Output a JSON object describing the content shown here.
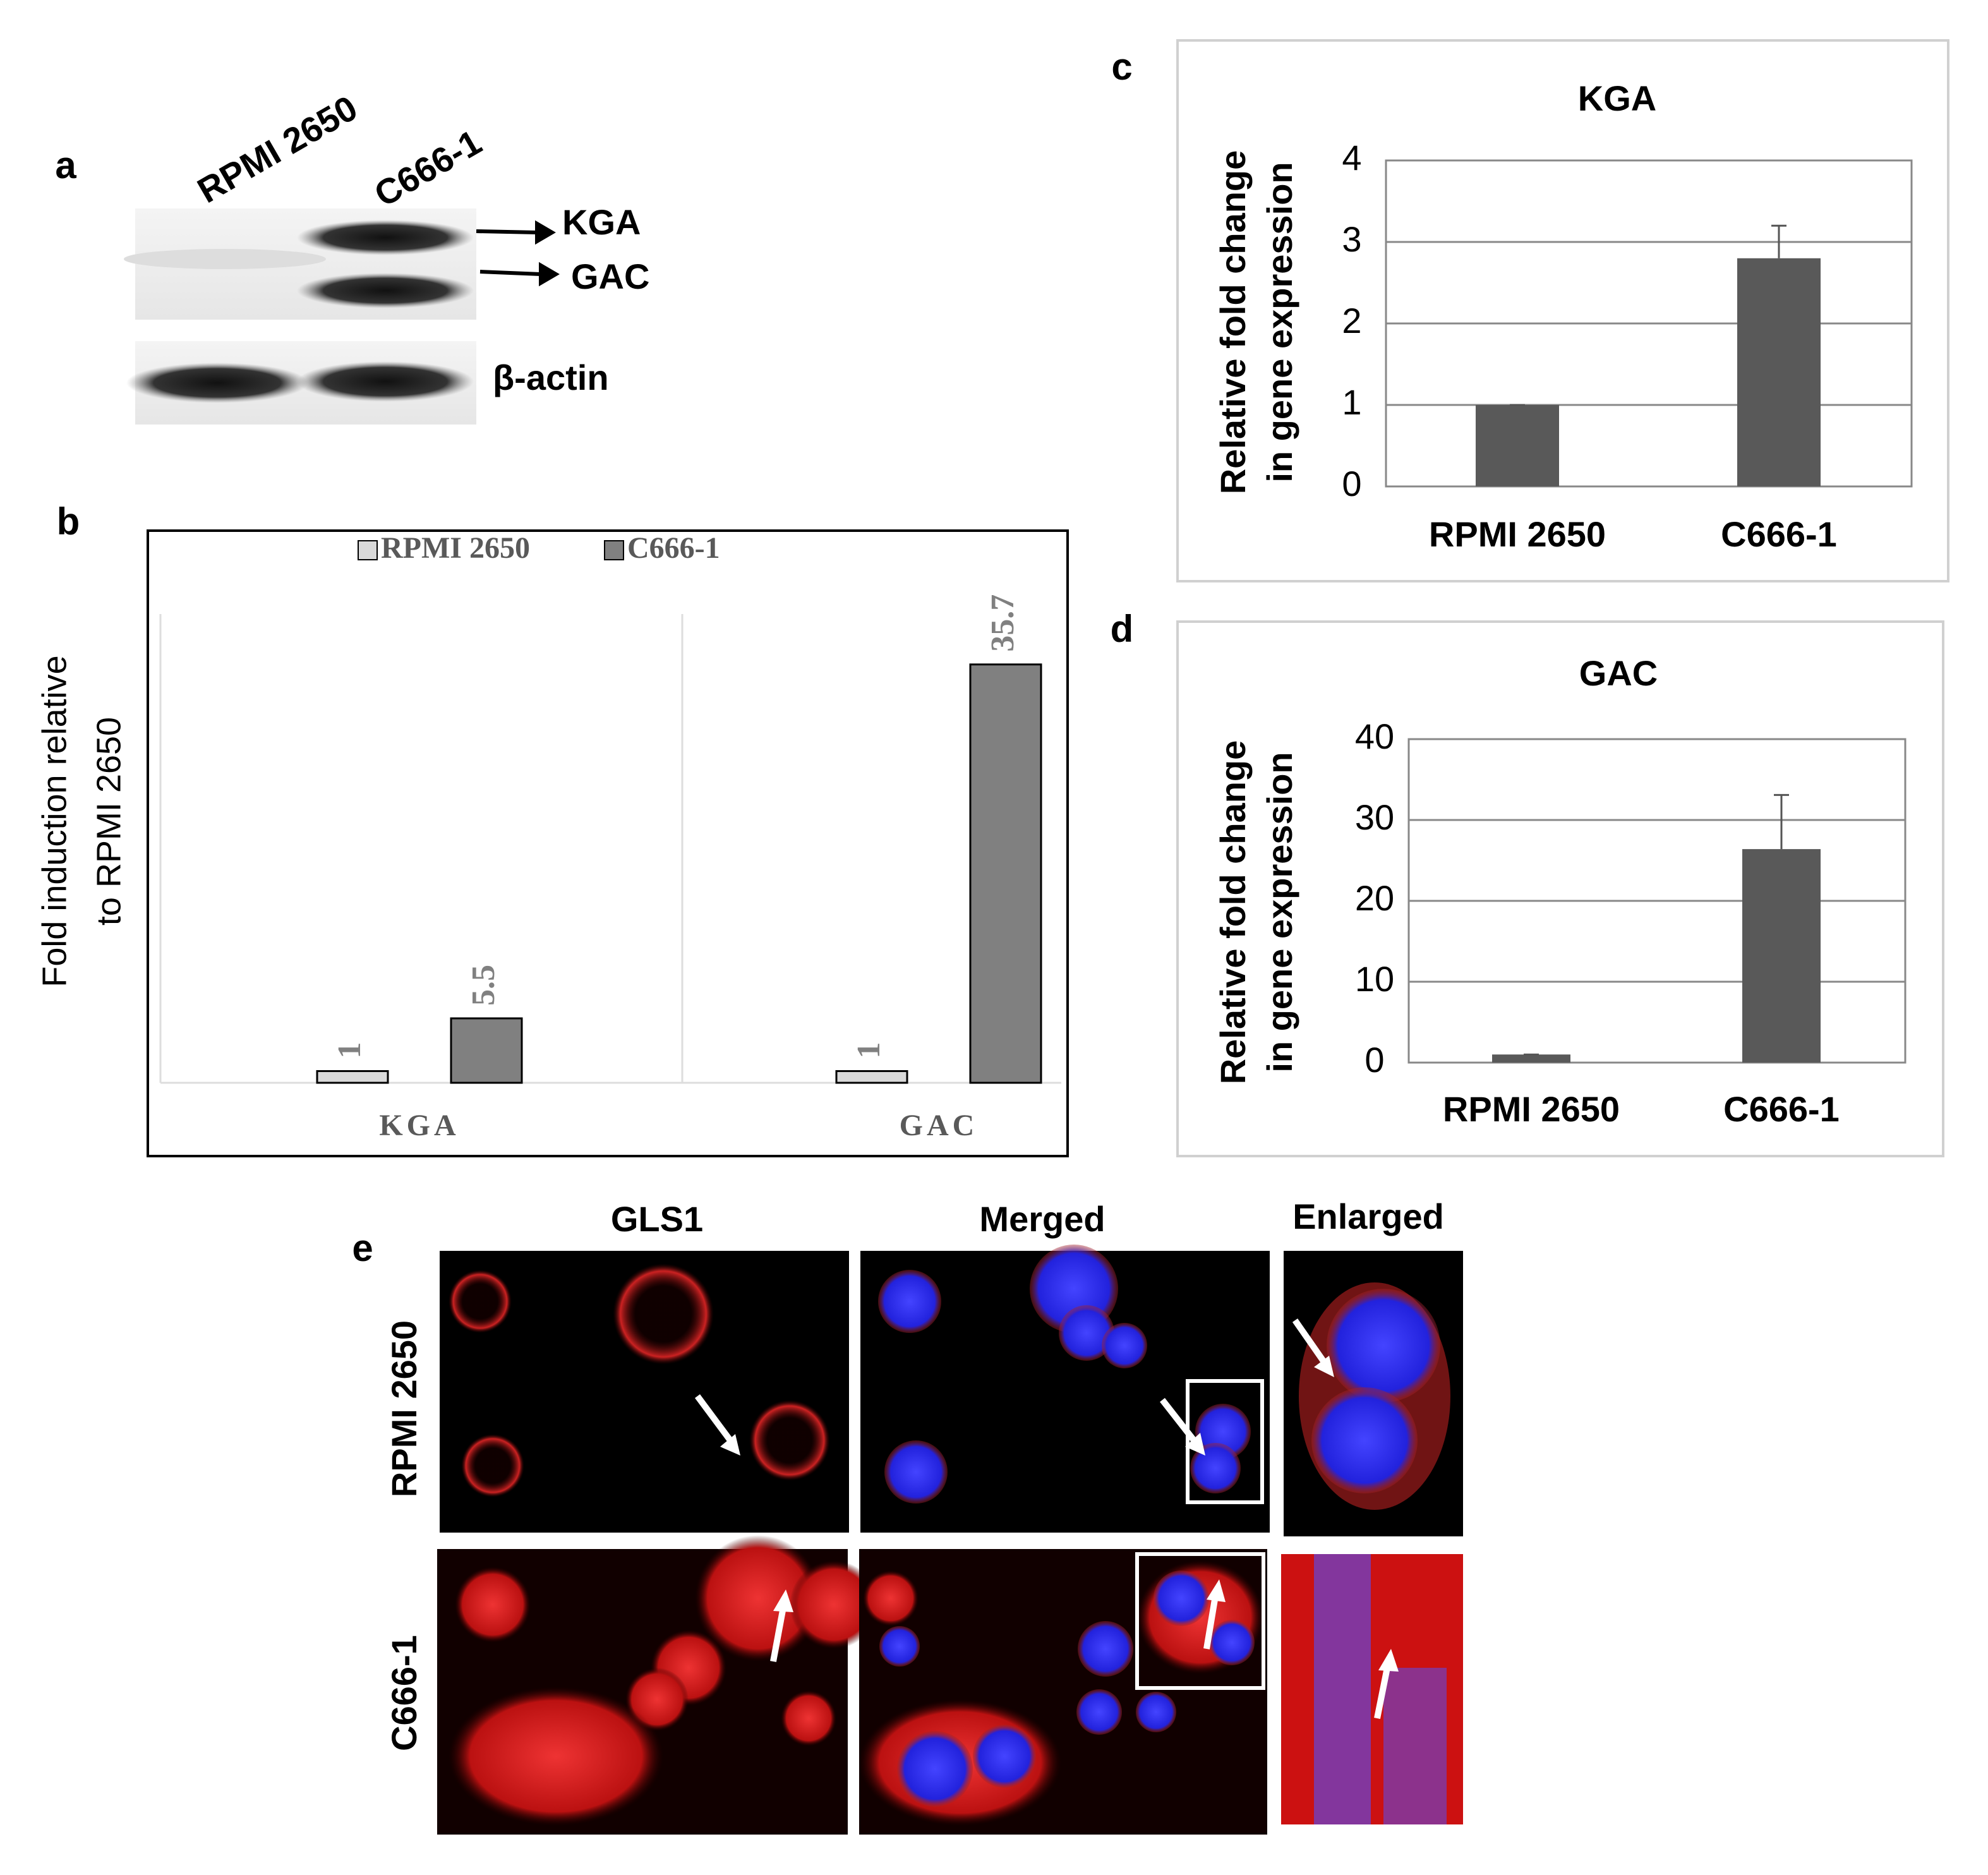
{
  "figure": {
    "panel_labels": [
      "a",
      "b",
      "c",
      "d",
      "e"
    ],
    "blot": {
      "lanes": [
        "RPMI 2650",
        "C666-1"
      ],
      "bands": [
        "KGA",
        "GAC",
        "β-actin"
      ]
    },
    "microscopy": {
      "columns": [
        "GLS1",
        "Merged",
        "Enlarged"
      ],
      "rows": [
        "RPMI 2650",
        "C666-1"
      ]
    }
  },
  "chart_data": [
    {
      "type": "bar",
      "categories": [
        "KGA",
        "GAC"
      ],
      "series": [
        {
          "name": "RPMI 2650",
          "color": "#d9d9d9",
          "values": [
            1,
            1
          ]
        },
        {
          "name": "C666-1",
          "color": "#808080",
          "values": [
            5.5,
            35.7
          ]
        }
      ],
      "y_label": [
        "Fold induction relative",
        "to RPMI 2650"
      ],
      "ylim": [
        0,
        40
      ],
      "legend": "top"
    },
    {
      "type": "bar",
      "title": "KGA",
      "categories": [
        "RPMI 2650",
        "C666-1"
      ],
      "values": [
        1,
        2.8
      ],
      "errors": [
        0,
        0.4
      ],
      "color": "#595959",
      "y_label": [
        "Relative fold change",
        "in gene expression"
      ],
      "ylim": [
        0,
        4
      ],
      "yticks": [
        0,
        1,
        2,
        3,
        4
      ],
      "grid": true
    },
    {
      "type": "bar",
      "title": "GAC",
      "categories": [
        "RPMI 2650",
        "C666-1"
      ],
      "values": [
        1,
        26.4
      ],
      "errors": [
        0,
        6.7
      ],
      "color": "#595959",
      "y_label": [
        "Relative fold change",
        "in gene expression"
      ],
      "ylim": [
        0,
        40
      ],
      "yticks": [
        0,
        10,
        20,
        30,
        40
      ],
      "grid": true
    }
  ]
}
